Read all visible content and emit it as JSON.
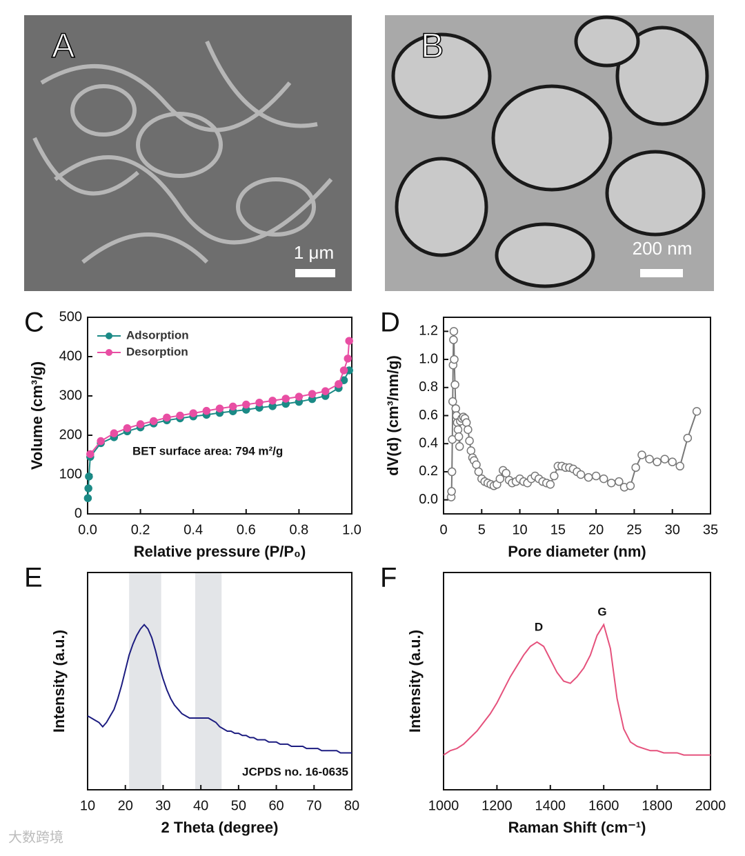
{
  "panels": [
    {
      "label": "A",
      "scale_bar": "1 μm"
    },
    {
      "label": "B",
      "scale_bar": "200 nm"
    }
  ],
  "watermark": "大数跨境",
  "chart_data": [
    {
      "type": "scatter",
      "panel": "C",
      "xlabel": "Relative pressure (P/P₀)",
      "ylabel": "Volume (cm³/g)",
      "annotations": [
        "BET surface area: 794 m²/g"
      ],
      "xlim": [
        0,
        1
      ],
      "ylim": [
        0,
        500
      ],
      "xticks": [
        {
          "value": 0,
          "label": "0.0"
        },
        {
          "value": 0.2,
          "label": "0.2"
        },
        {
          "value": 0.4,
          "label": "0.4"
        },
        {
          "value": 0.6,
          "label": "0.6"
        },
        {
          "value": 0.8,
          "label": "0.8"
        },
        {
          "value": 1,
          "label": "1.0"
        }
      ],
      "yticks": [
        0,
        100,
        200,
        300,
        400,
        500
      ],
      "legend": "upper left",
      "series": [
        {
          "name": "Adsorption",
          "color": "#1b8a86",
          "x": [
            0.001,
            0.003,
            0.005,
            0.01,
            0.05,
            0.1,
            0.15,
            0.2,
            0.25,
            0.3,
            0.35,
            0.4,
            0.45,
            0.5,
            0.55,
            0.6,
            0.65,
            0.7,
            0.75,
            0.8,
            0.85,
            0.9,
            0.95,
            0.97,
            0.99
          ],
          "values": [
            40,
            65,
            95,
            145,
            180,
            195,
            210,
            220,
            230,
            238,
            243,
            248,
            252,
            257,
            261,
            265,
            270,
            274,
            280,
            285,
            292,
            300,
            320,
            340,
            365
          ]
        },
        {
          "name": "Desorption",
          "color": "#e84ea3",
          "x": [
            0.01,
            0.05,
            0.1,
            0.15,
            0.2,
            0.25,
            0.3,
            0.35,
            0.4,
            0.45,
            0.5,
            0.55,
            0.6,
            0.65,
            0.7,
            0.75,
            0.8,
            0.85,
            0.9,
            0.95,
            0.97,
            0.985,
            0.99
          ],
          "values": [
            152,
            185,
            205,
            218,
            228,
            236,
            245,
            250,
            256,
            262,
            268,
            273,
            278,
            283,
            288,
            293,
            298,
            305,
            312,
            330,
            365,
            395,
            440
          ]
        }
      ]
    },
    {
      "type": "scatter",
      "panel": "D",
      "xlabel": "Pore diameter (nm)",
      "ylabel": "dV(d) (cm³/nm/g)",
      "xlim": [
        0,
        35
      ],
      "ylim": [
        -0.1,
        1.3
      ],
      "xticks": [
        0,
        5,
        10,
        15,
        20,
        25,
        30,
        35
      ],
      "yticks": [
        {
          "value": 0,
          "label": "0.0"
        },
        {
          "value": 0.2,
          "label": "0.2"
        },
        {
          "value": 0.4,
          "label": "0.4"
        },
        {
          "value": 0.6,
          "label": "0.6"
        },
        {
          "value": 0.8,
          "label": "0.8"
        },
        {
          "value": 1,
          "label": "1.0"
        },
        {
          "value": 1.2,
          "label": "1.2"
        }
      ],
      "series": [
        {
          "color": "#777777",
          "x": [
            1.0,
            1.05,
            1.1,
            1.15,
            1.2,
            1.25,
            1.3,
            1.35,
            1.4,
            1.5,
            1.6,
            1.7,
            1.8,
            1.9,
            2.0,
            2.1,
            2.2,
            2.4,
            2.6,
            2.8,
            3.0,
            3.2,
            3.4,
            3.6,
            3.8,
            4.0,
            4.3,
            4.6,
            5.0,
            5.4,
            5.8,
            6.2,
            6.6,
            7.0,
            7.4,
            7.8,
            8.2,
            8.6,
            9.0,
            9.5,
            10.0,
            10.5,
            11.0,
            11.5,
            12.0,
            12.5,
            13.0,
            13.5,
            14.0,
            14.5,
            15.0,
            15.5,
            16.0,
            16.5,
            17.0,
            17.5,
            18.0,
            19.0,
            20.0,
            21.0,
            22.0,
            23.0,
            23.7,
            24.5,
            25.2,
            26.0,
            27.0,
            28.0,
            29.0,
            30.0,
            31.0,
            32.0,
            33.2
          ],
          "values": [
            0.02,
            0.06,
            0.2,
            0.43,
            0.7,
            0.96,
            1.14,
            1.2,
            1.0,
            0.82,
            0.65,
            0.6,
            0.55,
            0.5,
            0.45,
            0.38,
            0.56,
            0.58,
            0.59,
            0.58,
            0.55,
            0.5,
            0.42,
            0.35,
            0.3,
            0.28,
            0.25,
            0.2,
            0.15,
            0.13,
            0.12,
            0.11,
            0.1,
            0.11,
            0.15,
            0.21,
            0.19,
            0.14,
            0.12,
            0.13,
            0.15,
            0.13,
            0.12,
            0.15,
            0.17,
            0.15,
            0.13,
            0.12,
            0.11,
            0.17,
            0.24,
            0.24,
            0.23,
            0.23,
            0.22,
            0.2,
            0.18,
            0.16,
            0.17,
            0.15,
            0.12,
            0.13,
            0.09,
            0.1,
            0.23,
            0.32,
            0.29,
            0.27,
            0.29,
            0.27,
            0.24,
            0.44,
            0.63
          ]
        }
      ]
    },
    {
      "type": "line",
      "panel": "E",
      "xlabel": "2 Theta (degree)",
      "ylabel": "Intensity (a.u.)",
      "annotations": [
        "JCPDS no. 16-0635"
      ],
      "xlim": [
        10,
        80
      ],
      "ylim": [
        0,
        100
      ],
      "xticks": [
        10,
        20,
        30,
        40,
        50,
        60,
        70,
        80
      ],
      "bands": [
        [
          21,
          29.5
        ],
        [
          38.5,
          45.5
        ]
      ],
      "series": [
        {
          "color": "#1c1c80",
          "x": [
            10,
            11,
            12,
            13,
            14,
            15,
            16,
            17,
            18,
            19,
            20,
            21,
            22,
            23,
            24,
            25,
            26,
            27,
            28,
            29,
            30,
            31,
            32,
            33,
            34,
            35,
            36,
            37,
            38,
            39,
            40,
            41,
            42,
            43,
            44,
            45,
            46,
            47,
            48,
            49,
            50,
            51,
            52,
            53,
            54,
            55,
            56,
            57,
            58,
            59,
            60,
            61,
            62,
            63,
            64,
            65,
            66,
            67,
            68,
            69,
            70,
            71,
            72,
            73,
            74,
            75,
            76,
            77,
            78,
            79,
            80
          ],
          "values": [
            34,
            33,
            32,
            31,
            29,
            31,
            34,
            37,
            42,
            48,
            55,
            62,
            67,
            71,
            74,
            76,
            74,
            70,
            64,
            57,
            51,
            46,
            42,
            39,
            37,
            35,
            34,
            33,
            33,
            33,
            33,
            33,
            33,
            32,
            31,
            29,
            28,
            27,
            27,
            26,
            26,
            25,
            25,
            24,
            24,
            23,
            23,
            23,
            22,
            22,
            22,
            21,
            21,
            21,
            20,
            20,
            20,
            20,
            19,
            19,
            19,
            19,
            18,
            18,
            18,
            18,
            18,
            17,
            17,
            17,
            17
          ]
        }
      ]
    },
    {
      "type": "line",
      "panel": "F",
      "xlabel": "Raman Shift (cm⁻¹)",
      "ylabel": "Intensity (a.u.)",
      "annotations": [
        "D",
        "G"
      ],
      "xlim": [
        1000,
        2000
      ],
      "ylim": [
        0,
        100
      ],
      "xticks": [
        1000,
        1200,
        1400,
        1600,
        1800,
        2000
      ],
      "series": [
        {
          "color": "#e5517c",
          "x": [
            1000,
            1025,
            1050,
            1075,
            1100,
            1125,
            1150,
            1175,
            1200,
            1225,
            1250,
            1275,
            1300,
            1325,
            1350,
            1375,
            1400,
            1425,
            1450,
            1475,
            1500,
            1525,
            1550,
            1575,
            1600,
            1625,
            1650,
            1675,
            1700,
            1725,
            1750,
            1775,
            1800,
            1825,
            1850,
            1875,
            1900,
            1925,
            1950,
            1975,
            2000
          ],
          "values": [
            16,
            18,
            19,
            21,
            24,
            27,
            31,
            35,
            40,
            46,
            52,
            57,
            62,
            66,
            68,
            66,
            60,
            54,
            50,
            49,
            52,
            56,
            62,
            71,
            76,
            65,
            42,
            28,
            22,
            20,
            19,
            18,
            18,
            17,
            17,
            17,
            16,
            16,
            16,
            16,
            16
          ]
        }
      ]
    }
  ]
}
